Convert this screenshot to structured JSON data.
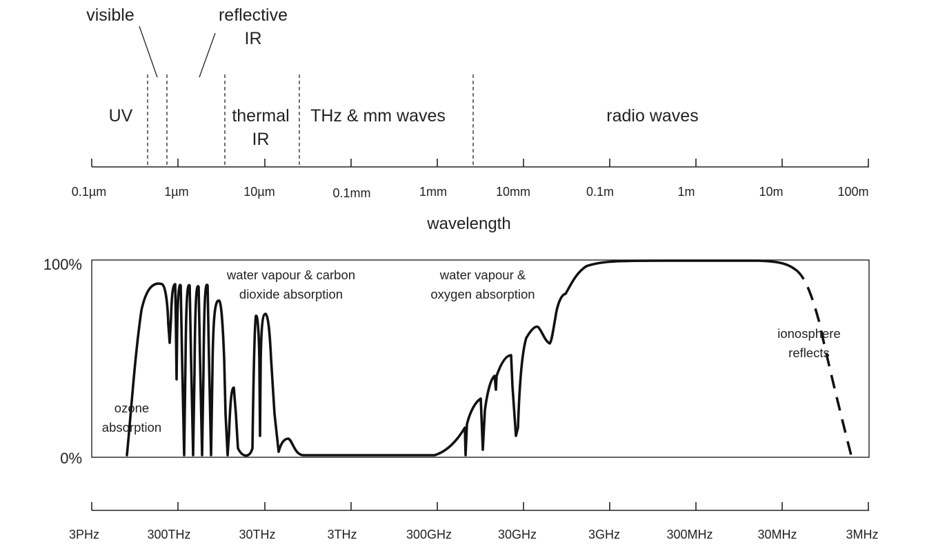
{
  "region_labels": {
    "visible": "visible",
    "reflective_ir": [
      "reflective",
      "IR"
    ],
    "uv": "UV",
    "thermal_ir": [
      "thermal",
      "IR"
    ],
    "thz_mm": "THz & mm waves",
    "radio": "radio waves"
  },
  "wavelength_axis": {
    "title": "wavelength",
    "ticks": [
      "0.1µm",
      "1µm",
      "10µm",
      "0.1mm",
      "1mm",
      "10mm",
      "0.1m",
      "1m",
      "10m",
      "100m"
    ]
  },
  "frequency_axis": {
    "ticks": [
      "3PHz",
      "300THz",
      "30THz",
      "3THz",
      "300GHz",
      "30GHz",
      "3GHz",
      "300MHz",
      "30MHz",
      "3MHz"
    ]
  },
  "chart": {
    "y_top_label": "100%",
    "y_bottom_label": "0%",
    "annotations": {
      "ozone": [
        "ozone",
        "absorption"
      ],
      "wv_co2": [
        "water vapour & carbon",
        "dioxide absorption"
      ],
      "wv_o2": [
        "water vapour &",
        "oxygen absorption"
      ],
      "ionosphere": [
        "ionosphere",
        "reflects"
      ]
    }
  },
  "chart_data": {
    "type": "line",
    "y_axis_label": "",
    "ylim": [
      0,
      100
    ],
    "x_scale": "log",
    "series": [
      {
        "x_wavelength_m": [
          2.5e-07,
          4e-07,
          6e-07,
          8e-07,
          9.5e-07,
          1.1e-06,
          1.4e-06,
          1.7e-06,
          2e-06,
          2.2e-06,
          2.7e-06,
          3.2e-06,
          3.6e-06,
          4.1e-06,
          4.5e-06,
          5e-06,
          6.5e-06,
          8e-06,
          9.5e-06,
          1.05e-05,
          1.2e-05,
          1.4e-05,
          1.8e-05,
          2.4e-05,
          0.0001,
          0.001,
          0.002,
          0.003,
          0.005,
          0.006,
          0.009,
          0.013,
          0.02,
          0.05,
          0.1,
          1,
          10
        ],
        "transmission_pct": [
          2,
          45,
          75,
          86,
          86,
          60,
          86,
          0,
          86,
          0,
          86,
          0,
          88,
          0,
          79,
          0,
          0,
          72,
          5,
          73,
          0,
          3,
          8,
          0,
          0,
          0,
          14,
          28,
          42,
          49,
          12,
          58,
          66,
          90,
          98,
          99,
          98
        ]
      },
      {
        "x_wavelength_m": [
          10,
          30,
          100
        ],
        "transmission_pct": [
          98,
          85,
          2
        ]
      }
    ]
  }
}
